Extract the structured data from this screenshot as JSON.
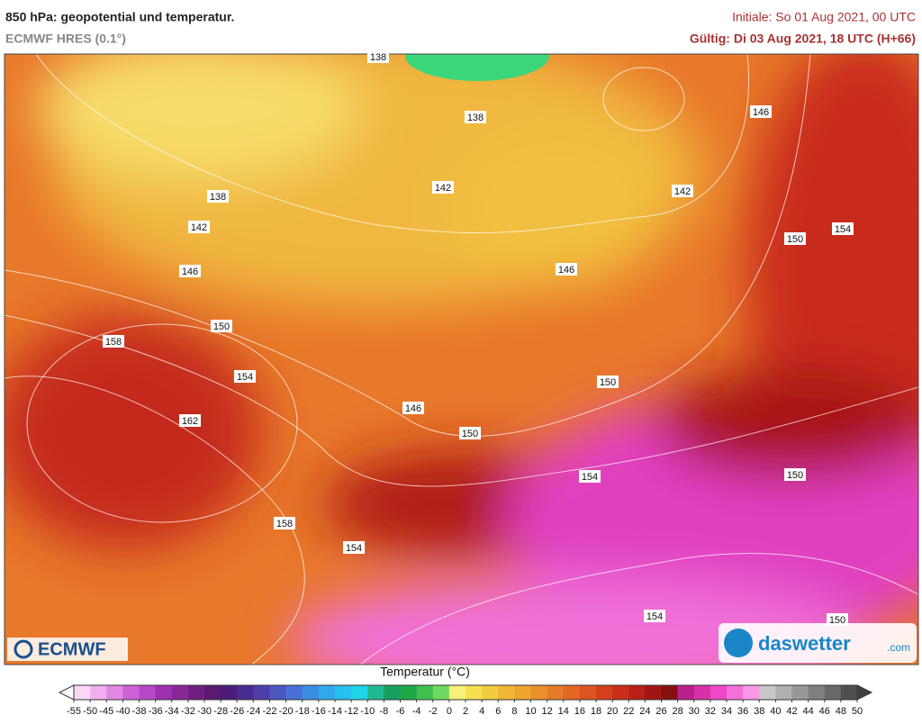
{
  "header": {
    "title": "850 hPa: geopotential und temperatur.",
    "model": "ECMWF HRES (0.1°)",
    "init": "Initiale: So 01 Aug 2021, 00 UTC",
    "valid": "Gültig: Di 03 Aug 2021, 18 UTC (H+66)"
  },
  "map": {
    "contour_labels": [
      "138",
      "138",
      "146",
      "142",
      "138",
      "142",
      "142",
      "154",
      "150",
      "146",
      "146",
      "150",
      "158",
      "154",
      "150",
      "146",
      "162",
      "150",
      "154",
      "150",
      "158",
      "154",
      "154",
      "150"
    ]
  },
  "logos": {
    "left": "ECMWF",
    "right": "daswetter",
    "right_suffix": ".com"
  },
  "colorbar": {
    "label": "Temperatur (°C)",
    "ticks": [
      -55,
      -50,
      -45,
      -40,
      -38,
      -36,
      -34,
      -32,
      -30,
      -28,
      -26,
      -24,
      -22,
      -20,
      -18,
      -16,
      -14,
      -12,
      -10,
      -8,
      -6,
      -4,
      -2,
      0,
      2,
      4,
      6,
      8,
      10,
      12,
      14,
      16,
      18,
      20,
      22,
      24,
      26,
      28,
      30,
      32,
      34,
      36,
      38,
      40,
      42,
      44,
      46,
      48,
      50
    ],
    "colors": [
      "#fbd8f8",
      "#f0b0f0",
      "#e088e4",
      "#d060d8",
      "#b848c8",
      "#a030b0",
      "#882898",
      "#702080",
      "#5a1a70",
      "#4a1c78",
      "#4a2c90",
      "#4c40a8",
      "#4c58c0",
      "#4870d8",
      "#3c8ce4",
      "#30a8ec",
      "#28c0ee",
      "#20d4e8",
      "#20b890",
      "#18a060",
      "#20a848",
      "#40c050",
      "#70d860",
      "#f8f078",
      "#f5e050",
      "#f2cc40",
      "#f0b838",
      "#eea430",
      "#ea902c",
      "#e67c28",
      "#e26824",
      "#dc5420",
      "#d4401c",
      "#c82e1a",
      "#b82018",
      "#a01614",
      "#861010",
      "#b8208c",
      "#d830a8",
      "#ee48c8",
      "#f670dc",
      "#f898e6",
      "#c8c8c8",
      "#b0b0b0",
      "#989898",
      "#808080",
      "#686868",
      "#505050"
    ]
  }
}
